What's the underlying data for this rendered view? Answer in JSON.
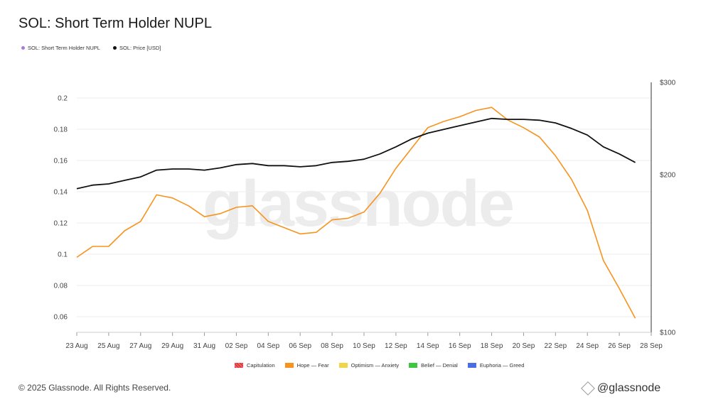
{
  "header": {
    "title": "SOL: Short Term Holder NUPL"
  },
  "top_legend": [
    {
      "label": "SOL: Short Term Holder NUPL",
      "color": "#a77be0"
    },
    {
      "label": "SOL: Price [USD]",
      "color": "#111111"
    }
  ],
  "bottom_legend": [
    {
      "label": "Capitulation",
      "color": "#e03b3b",
      "pattern": "stripes"
    },
    {
      "label": "Hope — Fear",
      "color": "#f7931e"
    },
    {
      "label": "Optimism — Anxiety",
      "color": "#f2d546"
    },
    {
      "label": "Belief — Denial",
      "color": "#3cc73c"
    },
    {
      "label": "Euphoria — Greed",
      "color": "#4a6ee0"
    }
  ],
  "footer": {
    "copyright": "© 2025 Glassnode. All Rights Reserved.",
    "brand": "@glassnode"
  },
  "watermark": "glassnode",
  "chart_data": {
    "type": "line",
    "title": "SOL: Short Term Holder NUPL",
    "x": [
      "23 Aug",
      "24 Aug",
      "25 Aug",
      "26 Aug",
      "27 Aug",
      "28 Aug",
      "29 Aug",
      "30 Aug",
      "31 Aug",
      "01 Sep",
      "02 Sep",
      "03 Sep",
      "04 Sep",
      "05 Sep",
      "06 Sep",
      "07 Sep",
      "08 Sep",
      "09 Sep",
      "10 Sep",
      "11 Sep",
      "12 Sep",
      "13 Sep",
      "14 Sep",
      "15 Sep",
      "16 Sep",
      "17 Sep",
      "18 Sep",
      "19 Sep",
      "20 Sep",
      "21 Sep",
      "22 Sep",
      "23 Sep",
      "24 Sep",
      "25 Sep",
      "26 Sep",
      "27 Sep"
    ],
    "x_tick_labels": [
      "23 Aug",
      "25 Aug",
      "27 Aug",
      "29 Aug",
      "31 Aug",
      "02 Sep",
      "04 Sep",
      "06 Sep",
      "08 Sep",
      "10 Sep",
      "12 Sep",
      "14 Sep",
      "16 Sep",
      "18 Sep",
      "20 Sep",
      "22 Sep",
      "24 Sep",
      "26 Sep",
      "28 Sep"
    ],
    "left_axis": {
      "ylim": [
        0.05,
        0.21
      ],
      "ticks": [
        "0.06",
        "0.08",
        "0.1",
        "0.12",
        "0.14",
        "0.16",
        "0.18",
        "0.2"
      ],
      "tick_values": [
        0.06,
        0.08,
        0.1,
        0.12,
        0.14,
        0.16,
        0.18,
        0.2
      ]
    },
    "right_axis": {
      "scale": "log",
      "ylim": [
        100,
        300
      ],
      "ticks": [
        "$100",
        "$200",
        "$300"
      ],
      "tick_values": [
        100,
        200,
        300
      ]
    },
    "grid": true,
    "series": [
      {
        "name": "SOL: Short Term Holder NUPL",
        "axis": "left",
        "color": "#f7931e",
        "values": [
          0.098,
          0.105,
          0.105,
          0.115,
          0.121,
          0.138,
          0.136,
          0.131,
          0.124,
          0.126,
          0.13,
          0.131,
          0.121,
          0.117,
          0.113,
          0.114,
          0.122,
          0.123,
          0.127,
          0.139,
          0.155,
          0.168,
          0.181,
          0.185,
          0.188,
          0.192,
          0.194,
          0.186,
          0.181,
          0.175,
          0.163,
          0.148,
          0.128,
          0.096,
          0.078,
          0.059
        ]
      },
      {
        "name": "SOL: Price [USD]",
        "axis": "right",
        "color": "#111111",
        "values": [
          188,
          191,
          192,
          195,
          198,
          204,
          205,
          205,
          204,
          206,
          209,
          210,
          208,
          208,
          207,
          208,
          211,
          212,
          214,
          219,
          226,
          234,
          240,
          244,
          248,
          252,
          256,
          255,
          255,
          254,
          251,
          245,
          238,
          226,
          219,
          211
        ]
      }
    ]
  }
}
